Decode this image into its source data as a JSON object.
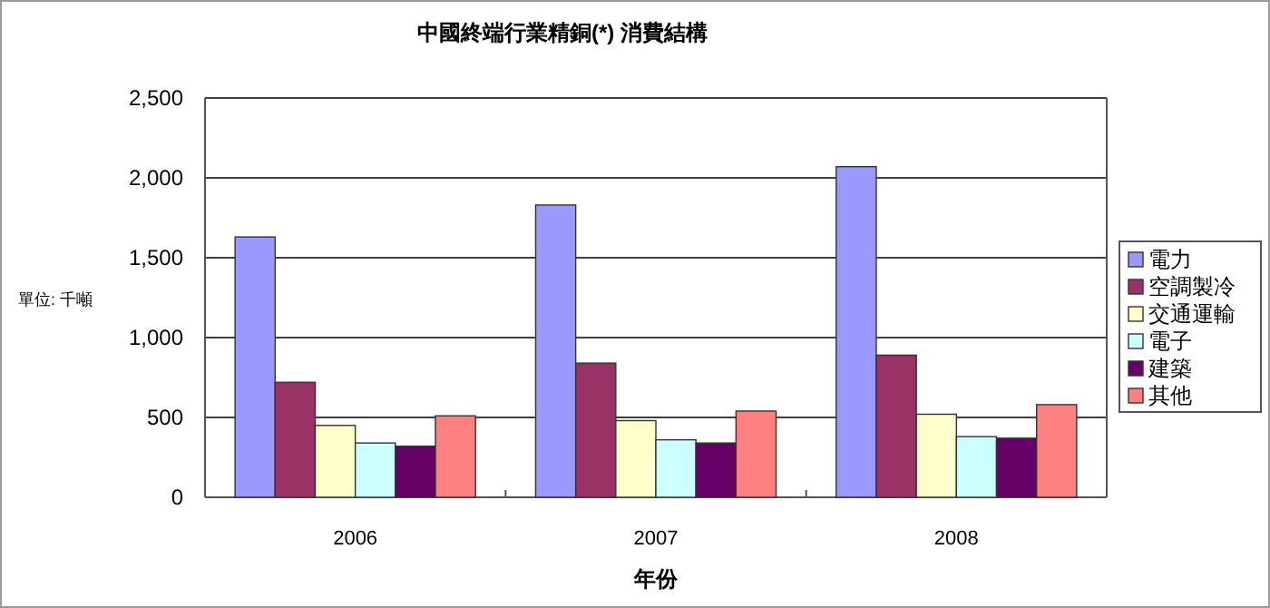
{
  "chart_data": {
    "type": "bar",
    "title": "中國終端行業精銅(*) 消費結構",
    "xlabel": "年份",
    "ylabel": "單位: 千噸",
    "categories": [
      "2006",
      "2007",
      "2008"
    ],
    "series": [
      {
        "name": "電力",
        "color": "#9999ff",
        "values": [
          1630,
          1830,
          2070
        ]
      },
      {
        "name": "空調製冷",
        "color": "#993366",
        "values": [
          720,
          840,
          890
        ]
      },
      {
        "name": "交通運輸",
        "color": "#ffffcc",
        "values": [
          450,
          480,
          520
        ]
      },
      {
        "name": "電子",
        "color": "#ccffff",
        "values": [
          340,
          360,
          380
        ]
      },
      {
        "name": "建築",
        "color": "#660066",
        "values": [
          320,
          340,
          370
        ]
      },
      {
        "name": "其他",
        "color": "#ff8080",
        "values": [
          510,
          540,
          580
        ]
      }
    ],
    "ylim": [
      0,
      2500
    ],
    "yticks": [
      0,
      {
        "value": 500,
        "label": "500"
      },
      {
        "value": 1000,
        "label": "1,000"
      },
      {
        "value": 1500,
        "label": "1,500"
      },
      {
        "value": 2000,
        "label": "2,000"
      },
      {
        "value": 2500,
        "label": "2,500"
      }
    ],
    "grid": "y",
    "legend": "right"
  }
}
